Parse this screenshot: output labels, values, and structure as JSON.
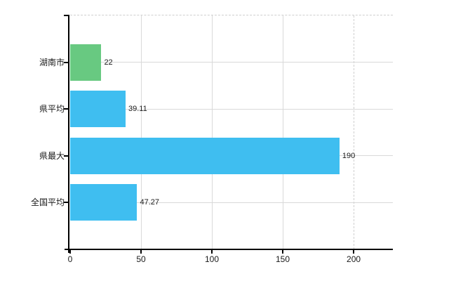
{
  "chart": {
    "background": "#ffffff",
    "title": ""
  },
  "chart_data": {
    "type": "bar",
    "orientation": "horizontal",
    "title": "",
    "xlabel": "",
    "ylabel": "",
    "categories": [
      "湖南市",
      "県平均",
      "県最大",
      "全国平均"
    ],
    "values": [
      22,
      39.11,
      190,
      47.27
    ],
    "value_labels": [
      "22",
      "39.11",
      "190",
      "47.27"
    ],
    "bar_colors": [
      "#68c981",
      "#3fbef0",
      "#3fbef0",
      "#3fbef0"
    ],
    "x_ticks": [
      0,
      50,
      100,
      150,
      200
    ],
    "x_tick_labels": [
      "0",
      "50",
      "100",
      "150",
      "200"
    ],
    "xlim": [
      0,
      227.7
    ],
    "solid_gridlines_at": [
      50,
      100,
      150
    ],
    "dashed_gridlines_at": [
      200
    ],
    "grid": "on",
    "legend": "none",
    "colors": {
      "grid": "#d9d9d9",
      "grid_dashed": "#cfcfcf",
      "axis": "#000000",
      "text": "#1a1a1a",
      "green_bar": "#68c981",
      "blue_bar": "#3fbef0"
    }
  }
}
